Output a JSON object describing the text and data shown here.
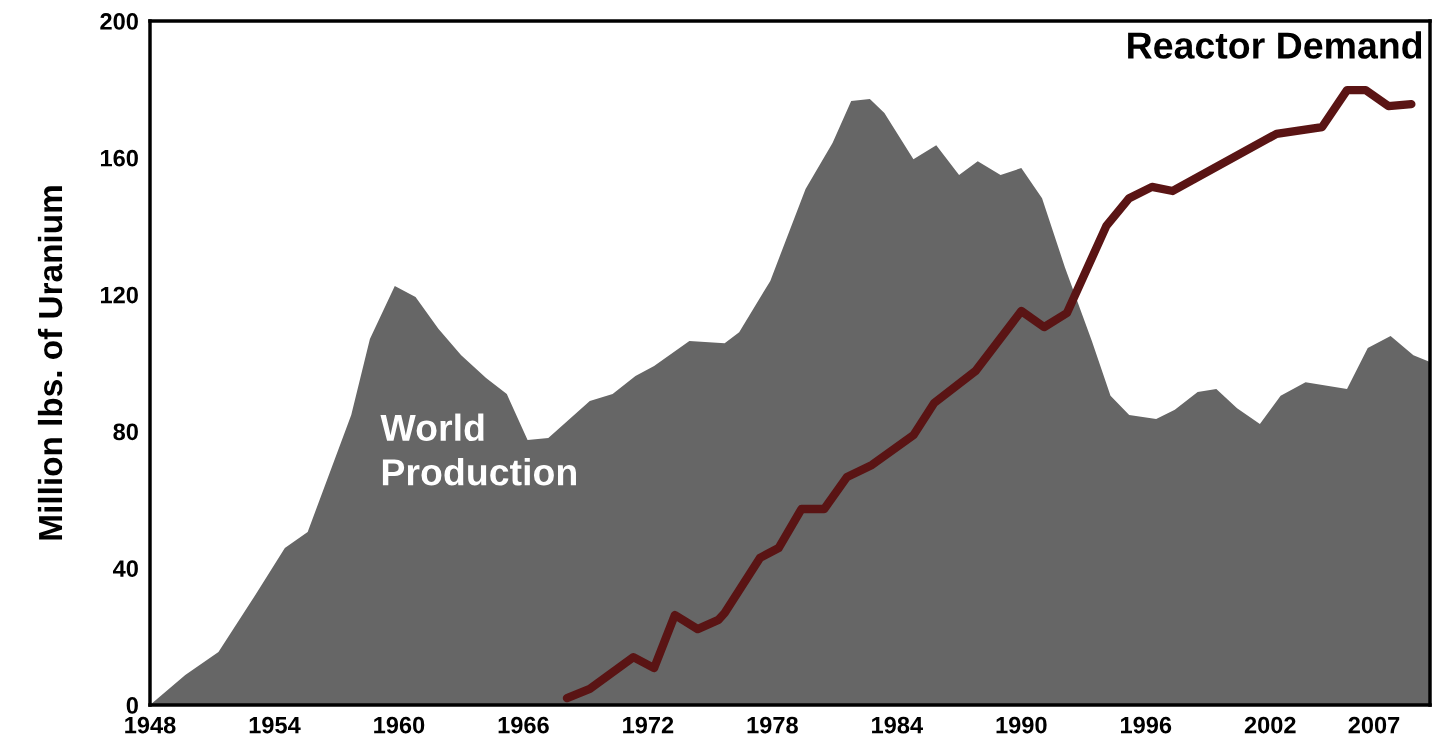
{
  "chart_data": {
    "type": "area",
    "ylabel": "Million lbs. of Uranium",
    "xlim": [
      1948,
      2009.7
    ],
    "ylim": [
      0,
      200
    ],
    "xticks": [
      1948,
      1954,
      1960,
      1966,
      1972,
      1978,
      1984,
      1990,
      1996,
      2002,
      2007
    ],
    "yticks": [
      0,
      40,
      80,
      120,
      160,
      200
    ],
    "grid": false,
    "legend": false,
    "series": [
      {
        "name": "World Production",
        "color": "#666666",
        "x": [
          1948,
          1949.7,
          1951.3,
          1953.1,
          1954.5,
          1955.6,
          1957.7,
          1958.6,
          1959.8,
          1960.8,
          1961.9,
          1963.0,
          1964.2,
          1965.2,
          1966.2,
          1967.2,
          1969.2,
          1970.3,
          1971.4,
          1972.3,
          1974.0,
          1975.7,
          1976.4,
          1977.9,
          1979.6,
          1980.9,
          1981.8,
          1982.7,
          1983.4,
          1984.8,
          1985.9,
          1987.0,
          1987.9,
          1989.0,
          1990.0,
          1991.0,
          1992.1,
          1993.4,
          1994.3,
          1995.2,
          1996.5,
          1997.4,
          1998.5,
          1999.4,
          2000.4,
          2001.5,
          2002.5,
          2003.7,
          2005.7,
          2006.7,
          2007.8,
          2008.9,
          2009.7
        ],
        "values": [
          0,
          8.8,
          15.5,
          32.4,
          45.9,
          50.6,
          84.8,
          107,
          122.5,
          119.3,
          110,
          102.3,
          95.6,
          90.9,
          77.5,
          78.1,
          88.9,
          90.9,
          96.2,
          99.1,
          106.4,
          105.8,
          109,
          124,
          150.9,
          164.3,
          176.6,
          177.2,
          173.1,
          159.6,
          163.7,
          155,
          159,
          155,
          157,
          148.2,
          128,
          106.4,
          90.4,
          84.8,
          83.6,
          86.3,
          91.5,
          92.4,
          86.8,
          82.2,
          90.4,
          94.4,
          92.4,
          104.4,
          107.9,
          102.3,
          100.3
        ]
      },
      {
        "name": "Reactor Demand",
        "type": "line",
        "color": "#5a1414",
        "x": [
          1968.1,
          1969.2,
          1971.3,
          1972.3,
          1973.3,
          1974.4,
          1975.4,
          1975.7,
          1977.4,
          1978.3,
          1979.4,
          1980.5,
          1981.6,
          1982.8,
          1984.8,
          1985.8,
          1987.8,
          1990.0,
          1991.1,
          1992.2,
          1994.1,
          1995.2,
          1996.3,
          1997.3,
          2002.3,
          2004.5,
          2005.7,
          2006.6,
          2007.7,
          2008.8
        ],
        "values": [
          2,
          4.7,
          14,
          10.8,
          26.3,
          22.2,
          24.9,
          26.9,
          43,
          45.9,
          57.3,
          57.3,
          66.7,
          70.2,
          78.9,
          88.3,
          97.7,
          115.2,
          110.5,
          114.6,
          140.1,
          148.2,
          151.5,
          150.3,
          167,
          169,
          179.8,
          179.8,
          175.1,
          175.7
        ]
      }
    ]
  }
}
